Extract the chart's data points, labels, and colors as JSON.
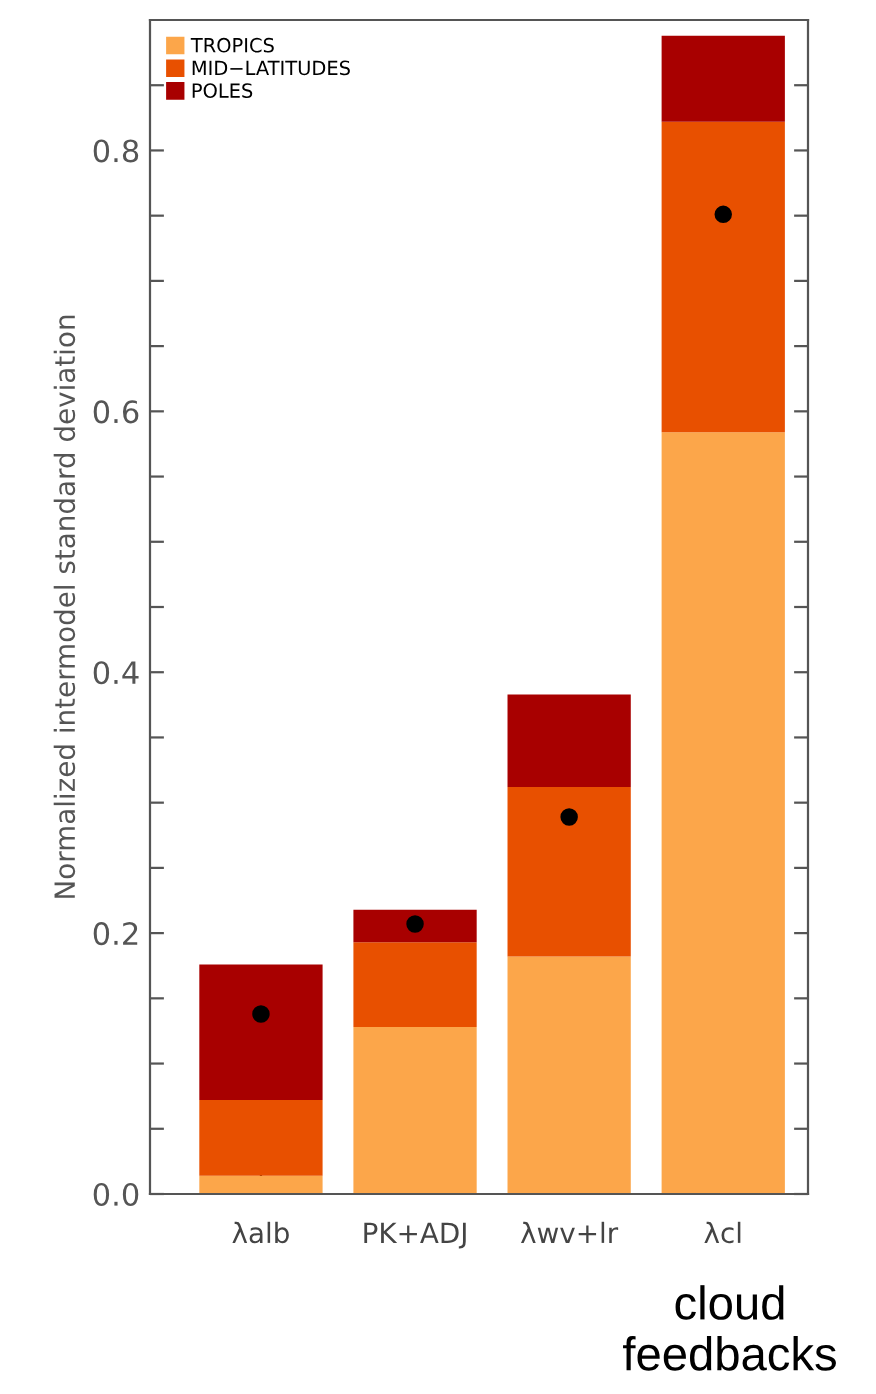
{
  "chart_data": {
    "type": "bar",
    "stacked": true,
    "ylabel": "Normalized intermodel standard deviation",
    "categories": [
      "λalb",
      "PK+ADJ",
      "λwv+lr",
      "λcl"
    ],
    "series": [
      {
        "name": "TROPICS",
        "color": "#fca64a",
        "values": [
          0.014,
          0.128,
          0.182,
          0.584
        ]
      },
      {
        "name": "MID−LATITUDES",
        "color": "#e85000",
        "values": [
          0.058,
          0.065,
          0.13,
          0.238
        ]
      },
      {
        "name": "POLES",
        "color": "#a80000",
        "values": [
          0.104,
          0.025,
          0.071,
          0.066
        ]
      },
      {
        "type": "scatter",
        "color": "#000000",
        "x": [
          "λalb",
          "PK+ADJ",
          "λwv+lr",
          "λcl"
        ],
        "values": [
          0.138,
          0.207,
          0.289,
          0.751
        ]
      }
    ],
    "ylim": [
      0,
      0.9
    ],
    "yticks": [
      {
        "value": 0,
        "label": "0.0"
      },
      {
        "value": 0.05,
        "label": null
      },
      {
        "value": 0.1,
        "label": null
      },
      {
        "value": 0.15,
        "label": null
      },
      0.2,
      {
        "value": 0.25,
        "label": null
      },
      {
        "value": 0.3,
        "label": null
      },
      {
        "value": 0.35,
        "label": null
      },
      0.4,
      {
        "value": 0.45,
        "label": null
      },
      {
        "value": 0.5,
        "label": null
      },
      {
        "value": 0.55,
        "label": null
      },
      0.6,
      {
        "value": 0.65,
        "label": null
      },
      {
        "value": 0.7,
        "label": null
      },
      {
        "value": 0.75,
        "label": null
      },
      0.8,
      {
        "value": 0.85,
        "label": null
      }
    ],
    "legend": "top left",
    "grid": false,
    "marker": "circle",
    "annotations": [
      "cloud feedbacks"
    ]
  }
}
